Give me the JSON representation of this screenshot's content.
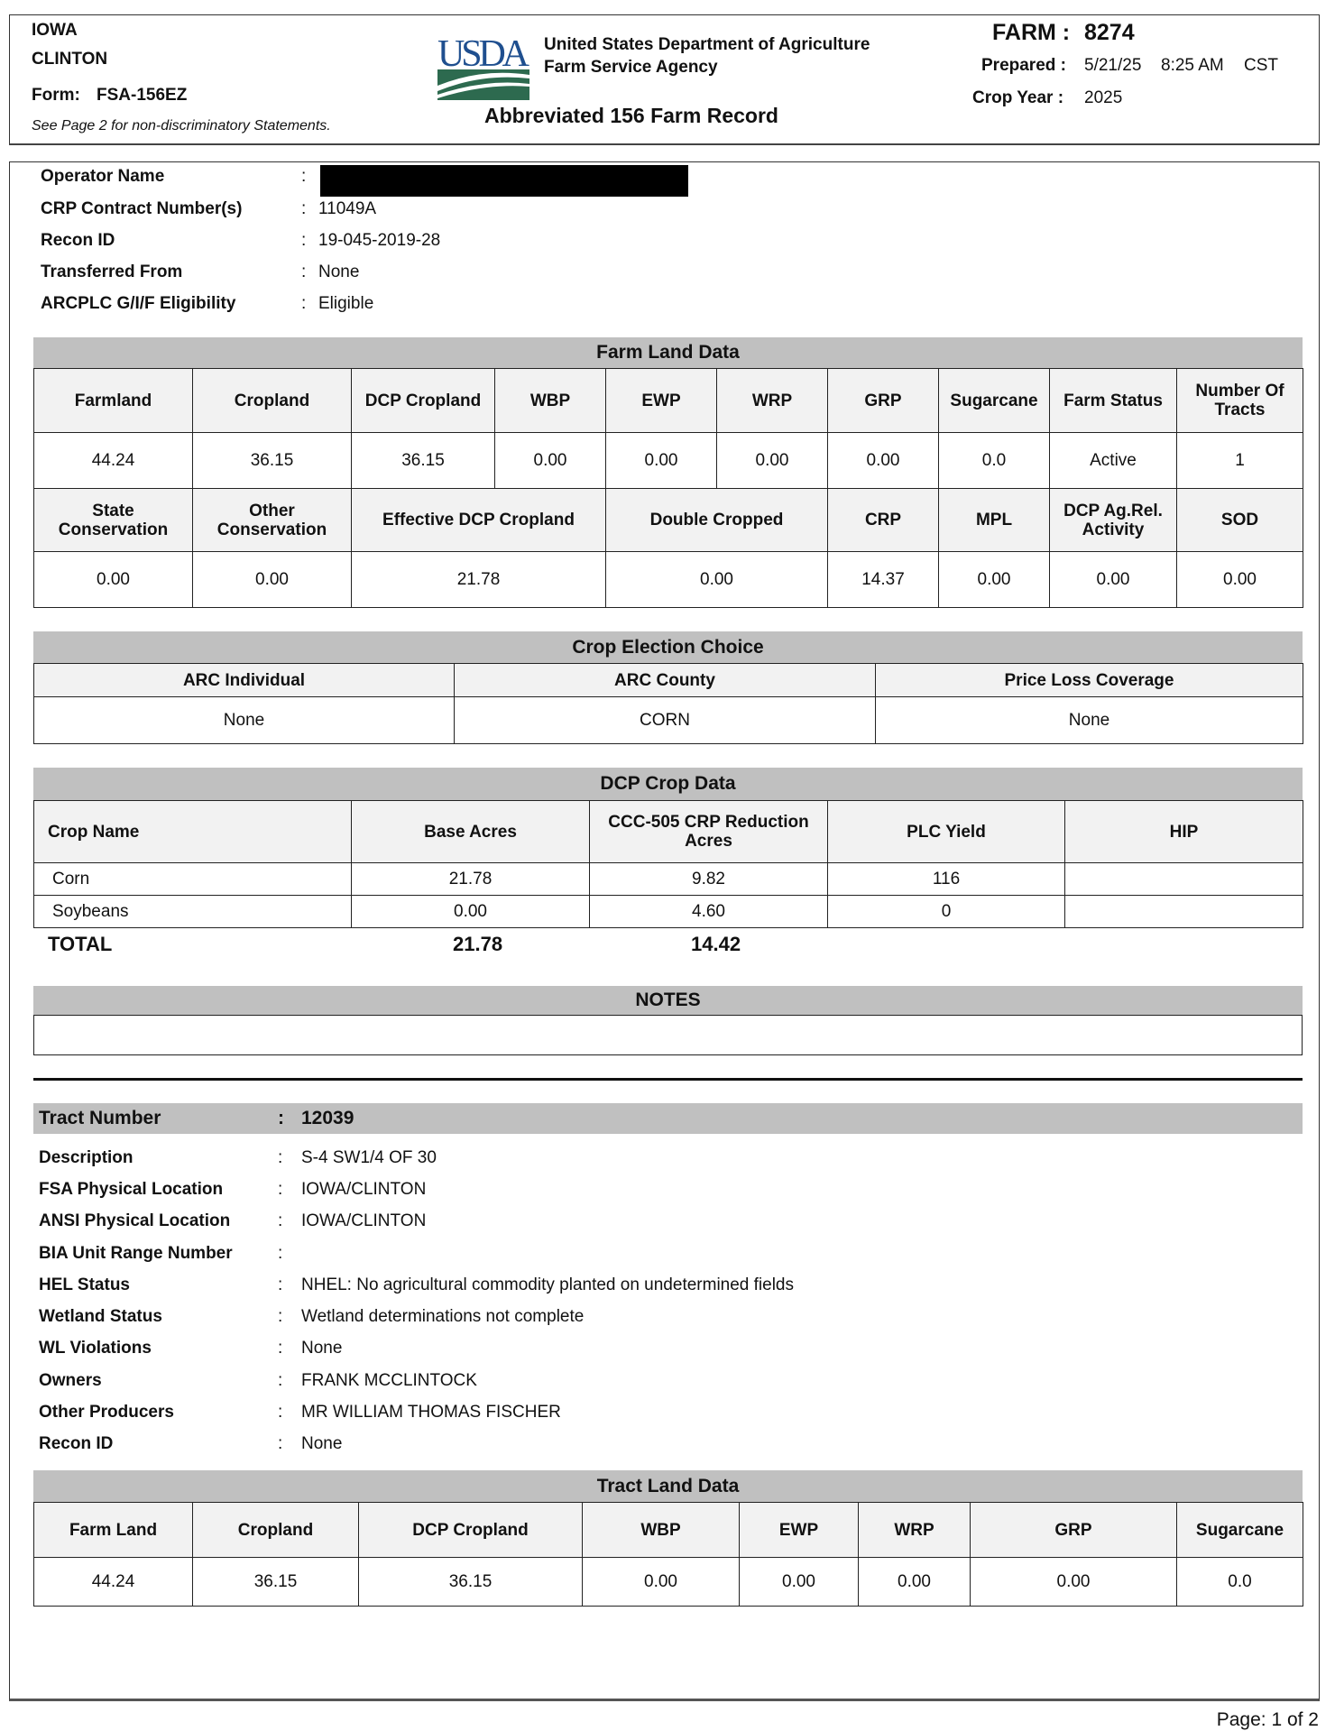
{
  "header": {
    "state": "IOWA",
    "county": "CLINTON",
    "form_label": "Form:",
    "form": "FSA-156EZ",
    "nondiscrim": "See Page 2 for non-discriminatory Statements.",
    "logo_text": "USDA",
    "agency1": "United States Department of Agriculture",
    "agency2": "Farm Service Agency",
    "title": "Abbreviated 156 Farm Record",
    "farm_label": "FARM :",
    "farm": "8274",
    "prepared_label": "Prepared :",
    "prepared_date": "5/21/25",
    "prepared_time": "8:25 AM",
    "prepared_tz": "CST",
    "crop_year_label": "Crop Year :",
    "crop_year": "2025"
  },
  "operator": [
    {
      "label": "Operator Name",
      "value": ""
    },
    {
      "label": "CRP Contract Number(s)",
      "value": "11049A"
    },
    {
      "label": "Recon ID",
      "value": "19-045-2019-28"
    },
    {
      "label": "Transferred From",
      "value": "None"
    },
    {
      "label": "ARCPLC G/I/F Eligibility",
      "value": "Eligible"
    }
  ],
  "farm_land": {
    "title": "Farm Land Data",
    "headers1": [
      "Farmland",
      "Cropland",
      "DCP Cropland",
      "WBP",
      "EWP",
      "WRP",
      "GRP",
      "Sugarcane",
      "Farm Status",
      "Number Of Tracts"
    ],
    "values1": [
      "44.24",
      "36.15",
      "36.15",
      "0.00",
      "0.00",
      "0.00",
      "0.00",
      "0.0",
      "Active",
      "1"
    ],
    "headers2": [
      "State Conservation",
      "Other Conservation",
      "Effective DCP Cropland",
      "Double Cropped",
      "CRP",
      "MPL",
      "DCP Ag.Rel. Activity",
      "SOD"
    ],
    "values2": [
      "0.00",
      "0.00",
      "21.78",
      "0.00",
      "14.37",
      "0.00",
      "0.00",
      "0.00"
    ]
  },
  "crop_election": {
    "title": "Crop Election Choice",
    "headers": [
      "ARC Individual",
      "ARC County",
      "Price Loss Coverage"
    ],
    "values": [
      "None",
      "CORN",
      "None"
    ]
  },
  "dcp_crop": {
    "title": "DCP Crop Data",
    "headers": [
      "Crop Name",
      "Base Acres",
      "CCC-505 CRP Reduction Acres",
      "PLC Yield",
      "HIP"
    ],
    "rows": [
      [
        "Corn",
        "21.78",
        "9.82",
        "116",
        ""
      ],
      [
        "Soybeans",
        "0.00",
        "4.60",
        "0",
        ""
      ]
    ],
    "total_label": "TOTAL",
    "total_base": "21.78",
    "total_reduction": "14.42"
  },
  "notes": {
    "title": "NOTES",
    "text": ""
  },
  "tract": {
    "number_label": "Tract Number",
    "number": "12039",
    "fields": [
      {
        "label": "Description",
        "value": "S-4 SW1/4 OF 30"
      },
      {
        "label": "FSA Physical Location",
        "value": "IOWA/CLINTON"
      },
      {
        "label": "ANSI Physical Location",
        "value": "IOWA/CLINTON"
      },
      {
        "label": "BIA Unit Range Number",
        "value": ""
      },
      {
        "label": "HEL Status",
        "value": "NHEL: No agricultural commodity planted on undetermined fields"
      },
      {
        "label": "Wetland Status",
        "value": "Wetland determinations not complete"
      },
      {
        "label": "WL Violations",
        "value": "None"
      },
      {
        "label": "Owners",
        "value": "FRANK MCCLINTOCK"
      },
      {
        "label": "Other Producers",
        "value": "MR WILLIAM THOMAS FISCHER"
      },
      {
        "label": "Recon ID",
        "value": "None"
      }
    ]
  },
  "tract_land": {
    "title": "Tract Land Data",
    "headers": [
      "Farm Land",
      "Cropland",
      "DCP Cropland",
      "WBP",
      "EWP",
      "WRP",
      "GRP",
      "Sugarcane"
    ],
    "values": [
      "44.24",
      "36.15",
      "36.15",
      "0.00",
      "0.00",
      "0.00",
      "0.00",
      "0.0"
    ]
  },
  "footer": {
    "page": "Page: 1 of 2"
  },
  "colors": {
    "usda_blue": "#1f4f8f",
    "usda_green": "#2d6a4f",
    "band": "#c0c0c0"
  }
}
